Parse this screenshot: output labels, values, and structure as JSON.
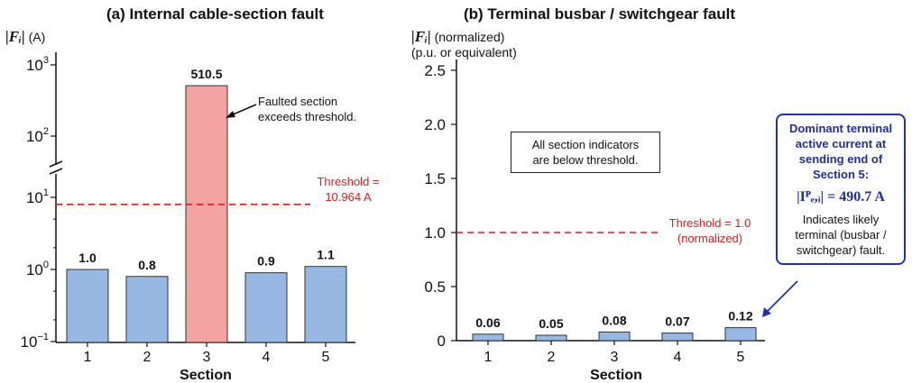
{
  "chart_data": [
    {
      "type": "bar",
      "title": "(a) Internal cable-section fault",
      "ylabel_symbol": "|Fᵢ|",
      "ylabel_unit": "(A)",
      "xlabel": "Section",
      "yscale": "log",
      "ylim": [
        0.1,
        1000
      ],
      "yticks": [
        {
          "value": 0.1,
          "base": "10",
          "exp": "−1"
        },
        {
          "value": 1,
          "base": "10",
          "exp": "0"
        },
        {
          "value": 10,
          "base": "10",
          "exp": "1"
        },
        {
          "value": 100,
          "base": "10",
          "exp": "2"
        },
        {
          "value": 1000,
          "base": "10",
          "exp": "3"
        }
      ],
      "axis_break": true,
      "categories": [
        "1",
        "2",
        "3",
        "4",
        "5"
      ],
      "values": [
        1.0,
        0.8,
        510.5,
        0.9,
        1.1
      ],
      "value_labels": [
        "1.0",
        "0.8",
        "510.5",
        "0.9",
        "1.1"
      ],
      "highlight_index": 2,
      "threshold": {
        "value": 10.964,
        "label_line1": "Threshold =",
        "label_line2": "10.964 A"
      },
      "annotation": {
        "line1": "Faulted section",
        "line2": "exceeds threshold."
      },
      "colors": {
        "bar": "#97b8e2",
        "highlight": "#f4a3a3",
        "threshold": "#d32020"
      }
    },
    {
      "type": "bar",
      "title": "(b) Terminal busbar / switchgear fault",
      "ylabel_symbol": "|Fᵢ|",
      "ylabel_unit": "(normalized)",
      "ylabel_line2": "(p.u. or equivalent)",
      "xlabel": "Section",
      "ylim": [
        0,
        2.5
      ],
      "yticks": [
        "0",
        "0.5",
        "1.0",
        "1.5",
        "2.0",
        "2.5"
      ],
      "categories": [
        "1",
        "2",
        "3",
        "4",
        "5"
      ],
      "values": [
        0.06,
        0.05,
        0.08,
        0.07,
        0.12
      ],
      "value_labels": [
        "0.06",
        "0.05",
        "0.08",
        "0.07",
        "0.12"
      ],
      "threshold": {
        "value": 1.0,
        "label_line1": "Threshold = 1.0",
        "label_line2": "(normalized)"
      },
      "box_note": {
        "line1": "All section indicators",
        "line2": "are below threshold."
      },
      "callout": {
        "head_lines": [
          "Dominant terminal",
          "active current at",
          "sending end of",
          "Section 5:"
        ],
        "formula": "|Iᴾₑ,ᵢ| = 490.7 A",
        "body_lines": [
          "Indicates likely",
          "terminal (busbar /",
          "switchgear) fault."
        ]
      },
      "colors": {
        "bar": "#97b8e2",
        "threshold": "#d32020",
        "callout": "#2233aa"
      }
    }
  ]
}
